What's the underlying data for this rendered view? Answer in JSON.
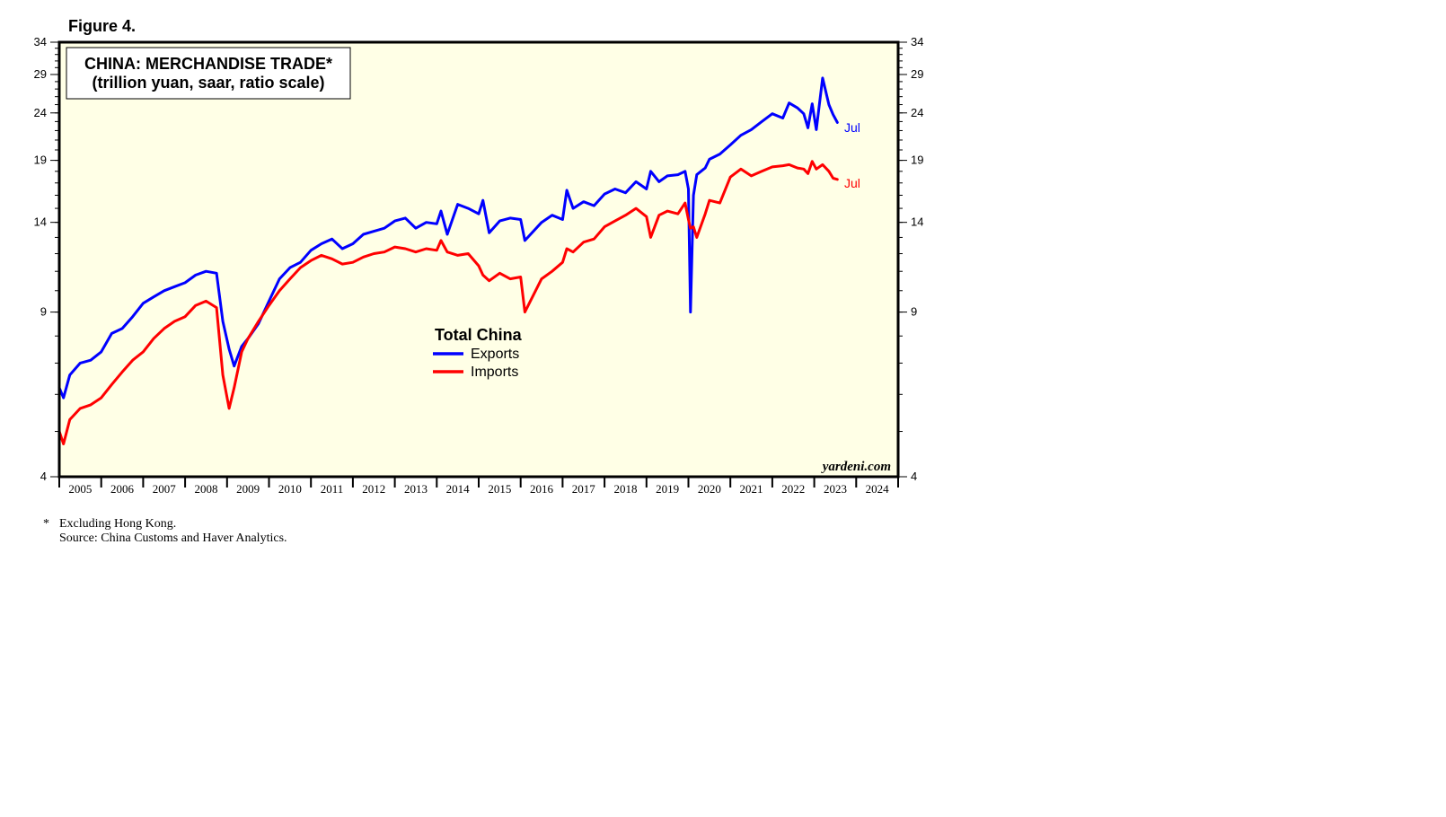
{
  "figure_label": "Figure 4.",
  "title_line1": "CHINA: MERCHANDISE TRADE*",
  "title_line2": "(trillion yuan, saar, ratio scale)",
  "legend": {
    "title": "Total China",
    "items": [
      {
        "label": "Exports",
        "color": "#0000ff"
      },
      {
        "label": "Imports",
        "color": "#ff0000"
      }
    ]
  },
  "end_labels": {
    "exports": "Jul",
    "imports": "Jul"
  },
  "credit": "yardeni.com",
  "notes": {
    "mark": "*",
    "line1": "Excluding Hong Kong.",
    "line2": "Source: China Customs and Haver Analytics."
  },
  "colors": {
    "plot_background": "#ffffe6",
    "exports": "#0000ff",
    "imports": "#ff0000"
  },
  "chart_data": {
    "type": "line",
    "scale": "log",
    "ylim": [
      4,
      34
    ],
    "y_ticks": [
      4,
      9,
      14,
      19,
      24,
      29,
      34
    ],
    "xlim": [
      2005.0,
      2025.0
    ],
    "x_tick_labels": [
      "2005",
      "2006",
      "2007",
      "2008",
      "2009",
      "2010",
      "2011",
      "2012",
      "2013",
      "2014",
      "2015",
      "2016",
      "2017",
      "2018",
      "2019",
      "2020",
      "2021",
      "2022",
      "2023",
      "2024"
    ],
    "grid": false,
    "legend_position": "center",
    "series": [
      {
        "name": "Exports",
        "color": "#0000ff",
        "x": [
          2005.0,
          2005.1,
          2005.25,
          2005.5,
          2005.75,
          2006.0,
          2006.25,
          2006.5,
          2006.75,
          2007.0,
          2007.25,
          2007.5,
          2007.75,
          2008.0,
          2008.25,
          2008.5,
          2008.75,
          2008.9,
          2009.05,
          2009.17,
          2009.35,
          2009.5,
          2009.75,
          2010.0,
          2010.25,
          2010.5,
          2010.75,
          2011.0,
          2011.25,
          2011.5,
          2011.75,
          2012.0,
          2012.25,
          2012.5,
          2012.75,
          2013.0,
          2013.25,
          2013.5,
          2013.75,
          2014.0,
          2014.1,
          2014.25,
          2014.5,
          2014.75,
          2015.0,
          2015.1,
          2015.25,
          2015.5,
          2015.75,
          2016.0,
          2016.1,
          2016.5,
          2016.75,
          2017.0,
          2017.1,
          2017.25,
          2017.5,
          2017.75,
          2018.0,
          2018.25,
          2018.5,
          2018.75,
          2019.0,
          2019.1,
          2019.3,
          2019.5,
          2019.75,
          2019.92,
          2020.0,
          2020.05,
          2020.12,
          2020.2,
          2020.4,
          2020.5,
          2020.75,
          2021.0,
          2021.25,
          2021.5,
          2021.75,
          2022.0,
          2022.25,
          2022.4,
          2022.6,
          2022.75,
          2022.85,
          2022.95,
          2023.05,
          2023.2,
          2023.35,
          2023.45,
          2023.55
        ],
        "values": [
          6.2,
          5.9,
          6.6,
          7.0,
          7.1,
          7.4,
          8.1,
          8.3,
          8.8,
          9.4,
          9.7,
          10.0,
          10.2,
          10.4,
          10.8,
          11.0,
          10.9,
          8.6,
          7.5,
          6.9,
          7.6,
          7.9,
          8.5,
          9.5,
          10.6,
          11.2,
          11.5,
          12.2,
          12.6,
          12.9,
          12.3,
          12.6,
          13.2,
          13.4,
          13.6,
          14.1,
          14.3,
          13.6,
          14.0,
          13.9,
          14.8,
          13.2,
          15.3,
          15.0,
          14.6,
          15.6,
          13.3,
          14.1,
          14.3,
          14.2,
          12.8,
          14.0,
          14.5,
          14.2,
          16.4,
          15.0,
          15.5,
          15.2,
          16.1,
          16.5,
          16.2,
          17.1,
          16.5,
          18.0,
          17.1,
          17.6,
          17.7,
          18.0,
          16.5,
          9.0,
          16.0,
          17.7,
          18.3,
          19.1,
          19.6,
          20.5,
          21.5,
          22.1,
          23.0,
          23.9,
          23.4,
          25.2,
          24.6,
          23.9,
          22.3,
          25.1,
          22.1,
          28.5,
          25.0,
          23.8,
          22.9
        ]
      },
      {
        "name": "Imports",
        "color": "#ff0000",
        "x": [
          2005.0,
          2005.1,
          2005.25,
          2005.5,
          2005.75,
          2006.0,
          2006.25,
          2006.5,
          2006.75,
          2007.0,
          2007.25,
          2007.5,
          2007.75,
          2008.0,
          2008.25,
          2008.5,
          2008.75,
          2008.9,
          2009.05,
          2009.17,
          2009.35,
          2009.5,
          2009.75,
          2010.0,
          2010.25,
          2010.5,
          2010.75,
          2011.0,
          2011.25,
          2011.5,
          2011.75,
          2012.0,
          2012.25,
          2012.5,
          2012.75,
          2013.0,
          2013.25,
          2013.5,
          2013.75,
          2014.0,
          2014.1,
          2014.25,
          2014.5,
          2014.75,
          2015.0,
          2015.1,
          2015.25,
          2015.5,
          2015.75,
          2016.0,
          2016.1,
          2016.5,
          2016.75,
          2017.0,
          2017.1,
          2017.25,
          2017.5,
          2017.75,
          2018.0,
          2018.25,
          2018.5,
          2018.75,
          2019.0,
          2019.1,
          2019.3,
          2019.5,
          2019.75,
          2019.92,
          2020.0,
          2020.05,
          2020.12,
          2020.2,
          2020.4,
          2020.5,
          2020.75,
          2021.0,
          2021.25,
          2021.5,
          2021.75,
          2022.0,
          2022.25,
          2022.4,
          2022.6,
          2022.75,
          2022.85,
          2022.95,
          2023.05,
          2023.2,
          2023.35,
          2023.45,
          2023.55
        ],
        "values": [
          5.0,
          4.7,
          5.3,
          5.6,
          5.7,
          5.9,
          6.3,
          6.7,
          7.1,
          7.4,
          7.9,
          8.3,
          8.6,
          8.8,
          9.3,
          9.5,
          9.2,
          6.6,
          5.6,
          6.2,
          7.4,
          7.9,
          8.6,
          9.3,
          10.0,
          10.6,
          11.2,
          11.6,
          11.9,
          11.7,
          11.4,
          11.5,
          11.8,
          12.0,
          12.1,
          12.4,
          12.3,
          12.1,
          12.3,
          12.2,
          12.8,
          12.1,
          11.9,
          12.0,
          11.3,
          10.8,
          10.5,
          10.9,
          10.6,
          10.7,
          9.0,
          10.6,
          11.0,
          11.5,
          12.3,
          12.1,
          12.7,
          12.9,
          13.7,
          14.1,
          14.5,
          15.0,
          14.4,
          13.0,
          14.5,
          14.8,
          14.6,
          15.4,
          14.2,
          13.6,
          13.7,
          13.0,
          14.6,
          15.6,
          15.4,
          17.5,
          18.2,
          17.6,
          18.0,
          18.4,
          18.5,
          18.6,
          18.3,
          18.2,
          17.8,
          18.9,
          18.2,
          18.6,
          18.0,
          17.4,
          17.3
        ]
      }
    ]
  }
}
